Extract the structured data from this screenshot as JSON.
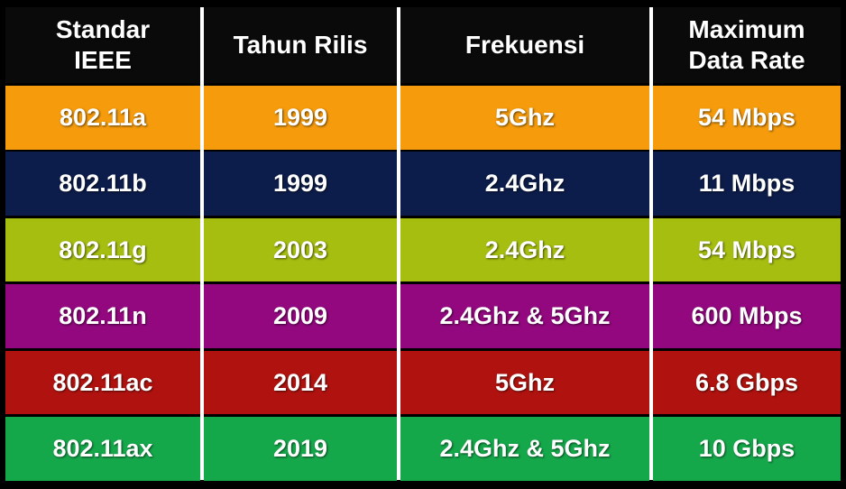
{
  "table": {
    "header": [
      "Standar IEEE",
      "Tahun Rilis",
      "Frekuensi",
      "Maximum Data Rate"
    ],
    "rows": [
      [
        "802.11a",
        "1999",
        "5Ghz",
        "54 Mbps"
      ],
      [
        "802.11b",
        "1999",
        "2.4Ghz",
        "11 Mbps"
      ],
      [
        "802.11g",
        "2003",
        "2.4Ghz",
        "54 Mbps"
      ],
      [
        "802.11n",
        "2009",
        "2.4Ghz & 5Ghz",
        "600 Mbps"
      ],
      [
        "802.11ac",
        "2014",
        "5Ghz",
        "6.8 Gbps"
      ],
      [
        "802.11ax",
        "2019",
        "2.4Ghz & 5Ghz",
        "10 Gbps"
      ]
    ]
  }
}
